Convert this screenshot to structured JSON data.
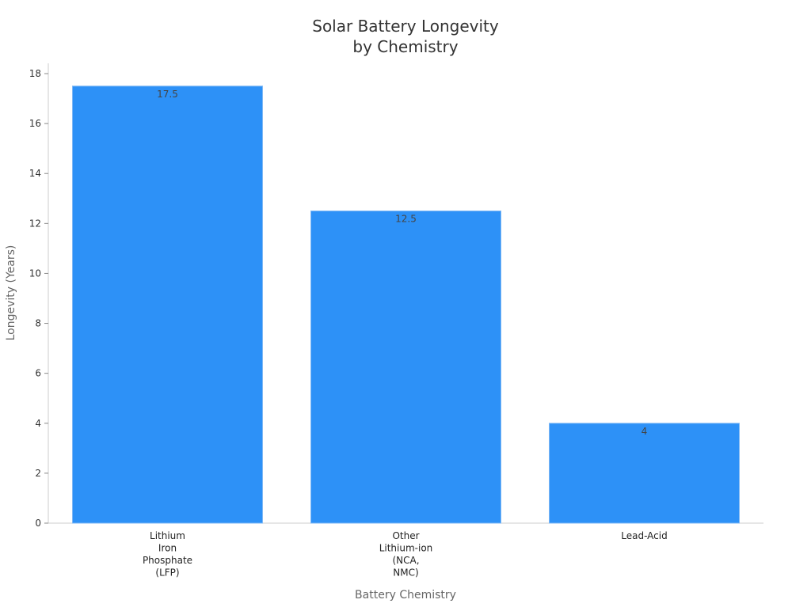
{
  "chart_data": {
    "type": "bar",
    "title": [
      "Solar Battery Longevity",
      "by Chemistry"
    ],
    "xlabel": "Battery Chemistry",
    "ylabel": "Longevity (Years)",
    "categories": [
      [
        "Lithium",
        "Iron",
        "Phosphate",
        "(LFP)"
      ],
      [
        "Other",
        "Lithium-ion",
        "(NCA,",
        "NMC)"
      ],
      [
        "Lead-Acid"
      ]
    ],
    "values": [
      17.5,
      12.5,
      4
    ],
    "value_labels": [
      "17.5",
      "12.5",
      "4"
    ],
    "ylim": [
      0,
      18
    ],
    "yticks": [
      0,
      2,
      4,
      6,
      8,
      10,
      12,
      14,
      16,
      18
    ],
    "grid": false,
    "bar_color": "#2d91f7",
    "axis_color": "#cccccc"
  }
}
